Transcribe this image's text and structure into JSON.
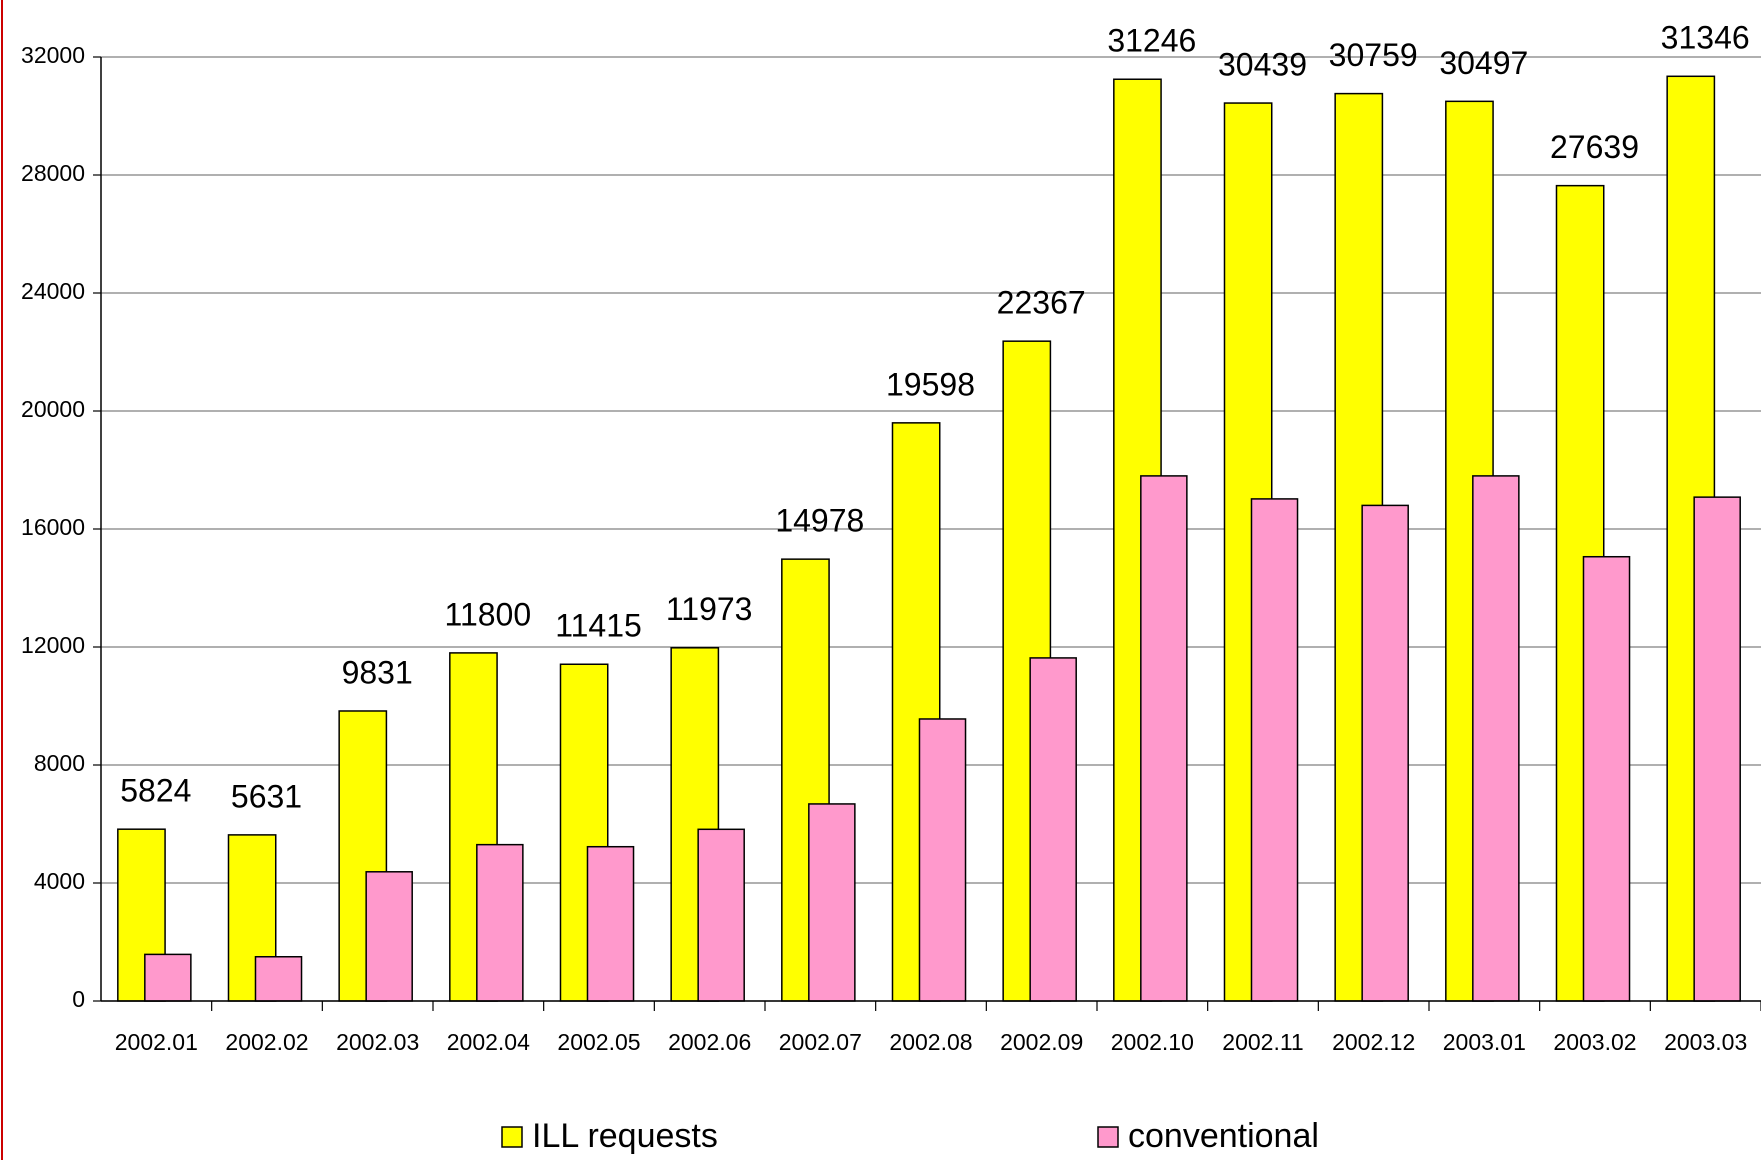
{
  "chart_data": {
    "type": "bar",
    "categories": [
      "2002.01",
      "2002.02",
      "2002.03",
      "2002.04",
      "2002.05",
      "2002.06",
      "2002.07",
      "2002.08",
      "2002.09",
      "2002.10",
      "2002.11",
      "2002.12",
      "2003.01",
      "2003.02",
      "2003.03"
    ],
    "series": [
      {
        "name": "ILL requests",
        "color": "#ffff00",
        "values": [
          5824,
          5631,
          9831,
          11800,
          11415,
          11973,
          14978,
          19598,
          22367,
          31246,
          30439,
          30759,
          30497,
          27639,
          31346
        ]
      },
      {
        "name": "conventional",
        "color": "#ff99cc",
        "values": [
          1580,
          1500,
          4380,
          5300,
          5230,
          5820,
          6680,
          9560,
          11630,
          17800,
          17020,
          16800,
          17800,
          15060,
          17080
        ]
      }
    ],
    "ylim": [
      0,
      32000
    ],
    "yticks": [
      0,
      4000,
      8000,
      12000,
      16000,
      20000,
      24000,
      28000,
      32000
    ],
    "grid": true
  }
}
